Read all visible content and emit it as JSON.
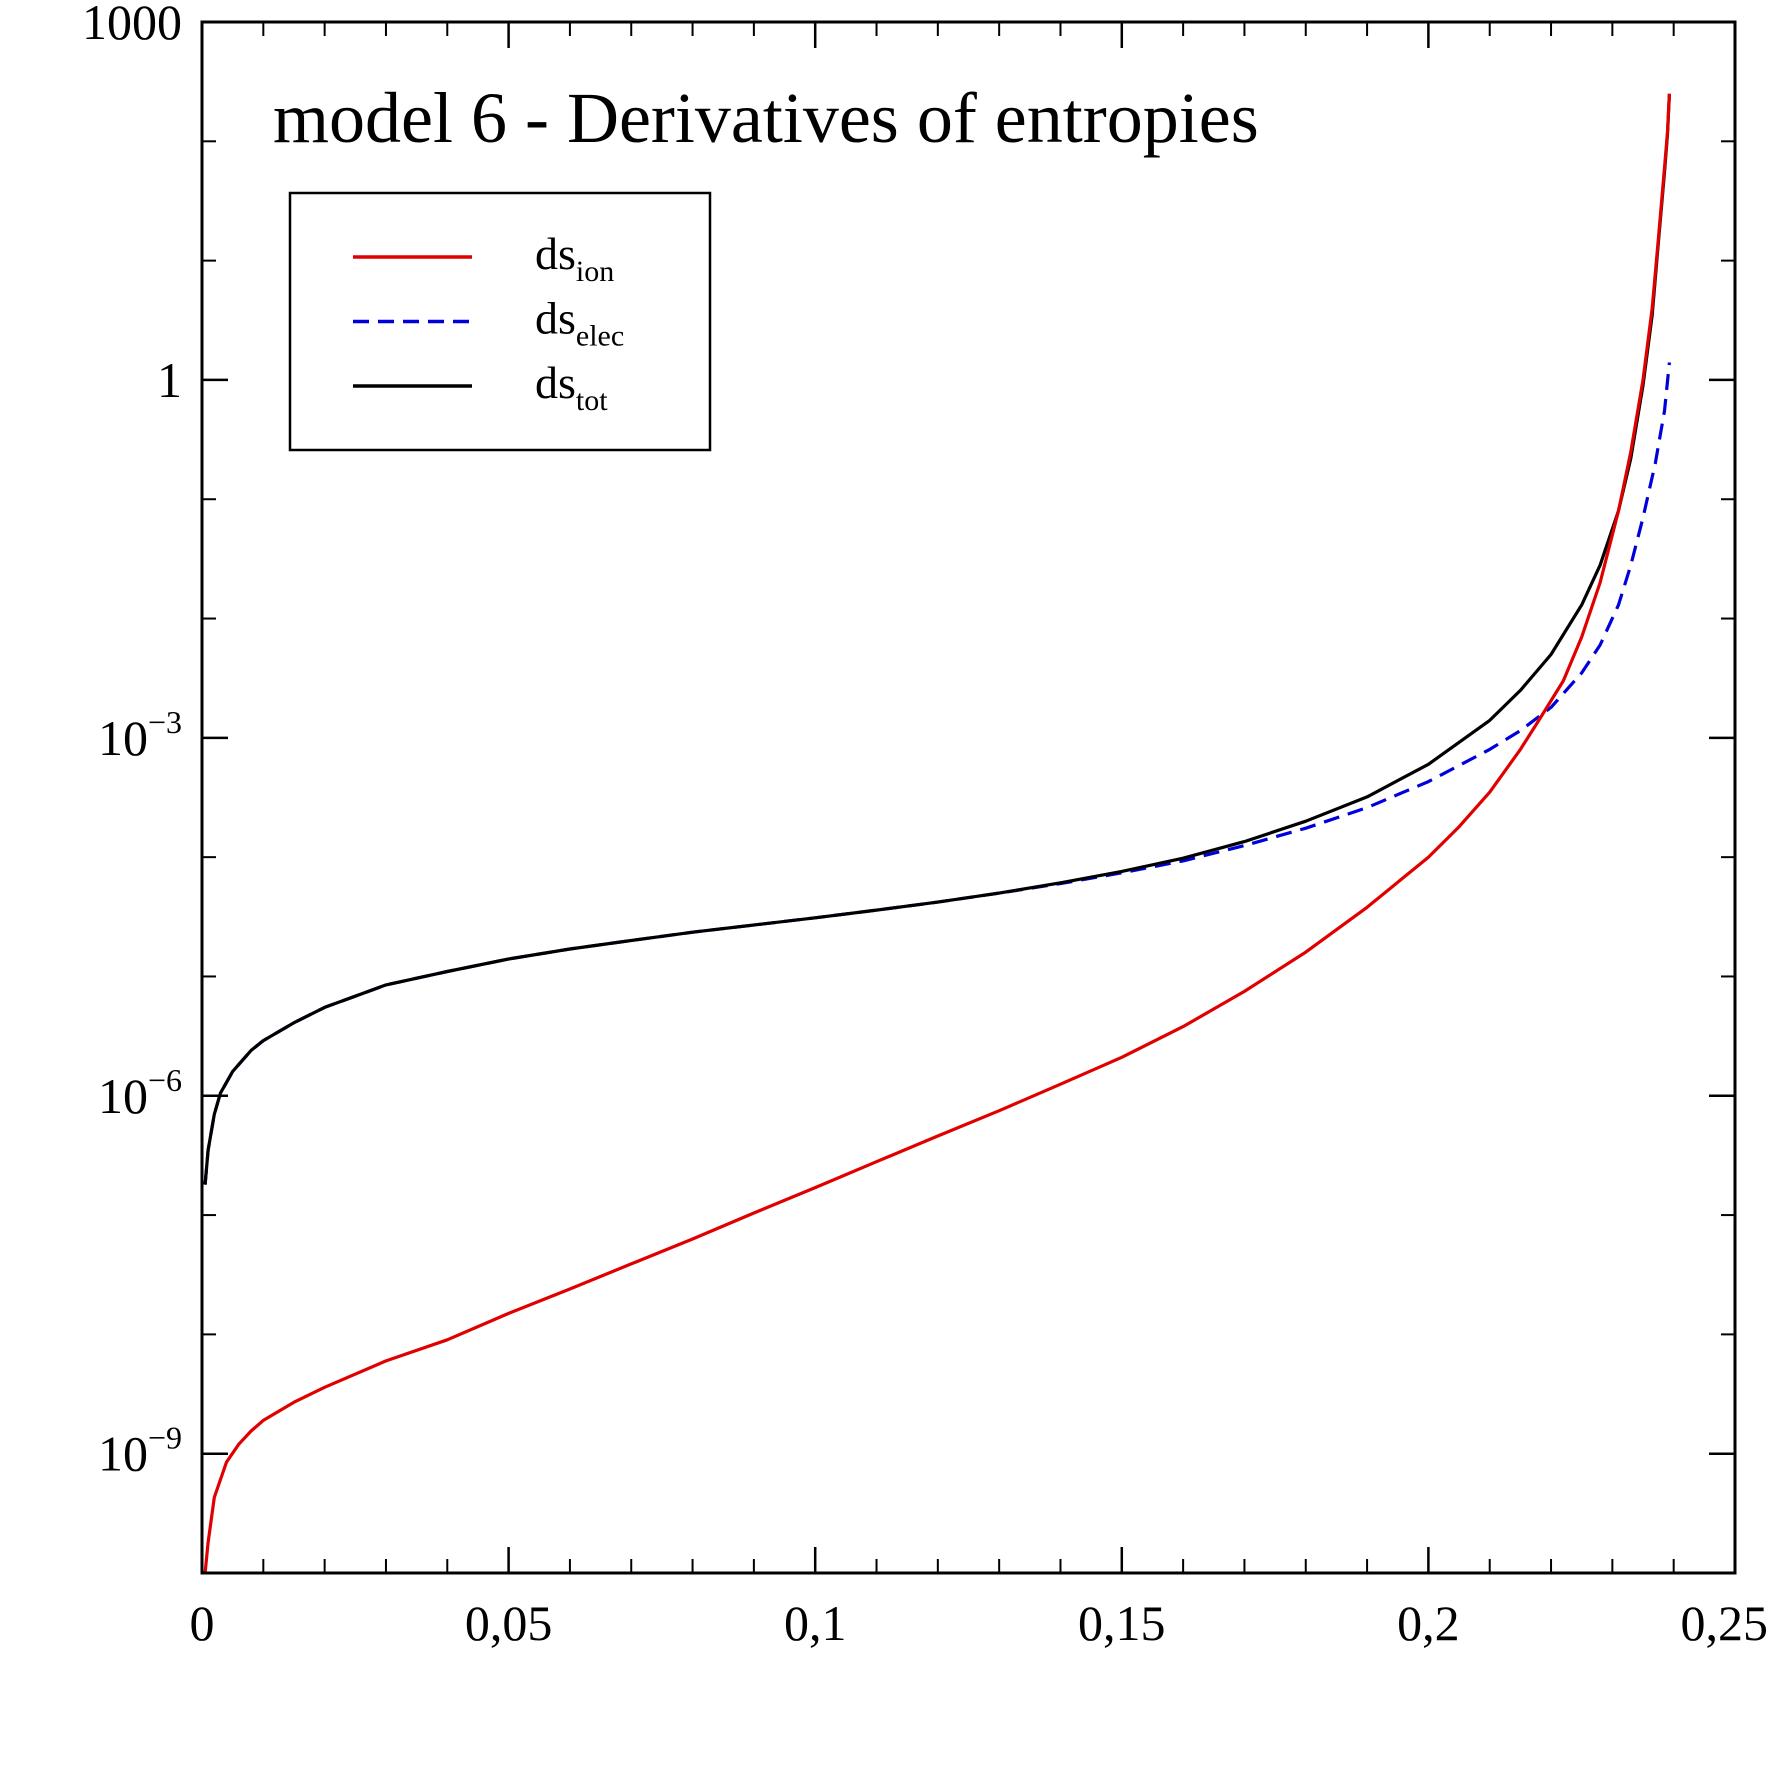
{
  "chart_data": {
    "type": "line",
    "title": "model 6 - Derivatives of entropies",
    "xlabel": "",
    "ylabel": "",
    "x_scale": "linear",
    "y_scale": "log",
    "xlim": [
      0,
      0.25
    ],
    "ylim": [
      1e-10,
      1000
    ],
    "grid": false,
    "legend_position": "top-left",
    "x_ticks": [
      {
        "value": 0,
        "label": "0"
      },
      {
        "value": 0.05,
        "label": "0,05"
      },
      {
        "value": 0.1,
        "label": "0,1"
      },
      {
        "value": 0.15,
        "label": "0,15"
      },
      {
        "value": 0.2,
        "label": "0,2"
      },
      {
        "value": 0.25,
        "label": "0,25"
      }
    ],
    "y_ticks": [
      {
        "value": 1e-09,
        "base": "10",
        "exponent": "−9"
      },
      {
        "value": 1e-06,
        "base": "10",
        "exponent": "−6"
      },
      {
        "value": 0.001,
        "base": "10",
        "exponent": "−3"
      },
      {
        "value": 1,
        "base": "1",
        "exponent": ""
      },
      {
        "value": 1000,
        "base": "1000",
        "exponent": ""
      }
    ],
    "series": [
      {
        "name": "ion",
        "legend_main": "ds",
        "legend_sub": "ion",
        "color": "#e00000",
        "dash": "solid",
        "points": [
          [
            0.0005,
            1e-10
          ],
          [
            0.001,
            1.8e-10
          ],
          [
            0.002,
            4.3e-10
          ],
          [
            0.004,
            8.5e-10
          ],
          [
            0.006,
            1.2e-09
          ],
          [
            0.008,
            1.55e-09
          ],
          [
            0.01,
            1.9e-09
          ],
          [
            0.015,
            2.7e-09
          ],
          [
            0.02,
            3.6e-09
          ],
          [
            0.03,
            6e-09
          ],
          [
            0.04,
            9e-09
          ],
          [
            0.05,
            1.5e-08
          ],
          [
            0.06,
            2.4e-08
          ],
          [
            0.07,
            3.9e-08
          ],
          [
            0.08,
            6.3e-08
          ],
          [
            0.09,
            1.04e-07
          ],
          [
            0.1,
            1.7e-07
          ],
          [
            0.11,
            2.8e-07
          ],
          [
            0.12,
            4.6e-07
          ],
          [
            0.13,
            7.5e-07
          ],
          [
            0.14,
            1.25e-06
          ],
          [
            0.15,
            2.1e-06
          ],
          [
            0.16,
            3.8e-06
          ],
          [
            0.17,
            7.5e-06
          ],
          [
            0.18,
            1.6e-05
          ],
          [
            0.19,
            3.8e-05
          ],
          [
            0.2,
            0.0001
          ],
          [
            0.205,
            0.00018
          ],
          [
            0.21,
            0.00035
          ],
          [
            0.215,
            0.0008
          ],
          [
            0.218,
            0.0014
          ],
          [
            0.222,
            0.003
          ],
          [
            0.225,
            0.007
          ],
          [
            0.228,
            0.02
          ],
          [
            0.231,
            0.08
          ],
          [
            0.233,
            0.25
          ],
          [
            0.235,
            1
          ],
          [
            0.2365,
            4
          ],
          [
            0.2375,
            15
          ],
          [
            0.2385,
            60
          ],
          [
            0.239,
            120
          ],
          [
            0.2393,
            250
          ]
        ]
      },
      {
        "name": "elec",
        "legend_main": "ds",
        "legend_sub": "elec",
        "color": "#0000dd",
        "dash": "dashed",
        "points": [
          [
            0.0005,
            1.8e-07
          ],
          [
            0.001,
            3.5e-07
          ],
          [
            0.002,
            7e-07
          ],
          [
            0.003,
            1.05e-06
          ],
          [
            0.005,
            1.6e-06
          ],
          [
            0.008,
            2.4e-06
          ],
          [
            0.01,
            2.9e-06
          ],
          [
            0.015,
            4.1e-06
          ],
          [
            0.02,
            5.5e-06
          ],
          [
            0.03,
            8.5e-06
          ],
          [
            0.04,
            1.1e-05
          ],
          [
            0.05,
            1.4e-05
          ],
          [
            0.06,
            1.7e-05
          ],
          [
            0.07,
            2e-05
          ],
          [
            0.08,
            2.35e-05
          ],
          [
            0.09,
            2.7e-05
          ],
          [
            0.1,
            3.1e-05
          ],
          [
            0.11,
            3.6e-05
          ],
          [
            0.12,
            4.2e-05
          ],
          [
            0.13,
            5e-05
          ],
          [
            0.14,
            6e-05
          ],
          [
            0.15,
            7.4e-05
          ],
          [
            0.16,
            9.3e-05
          ],
          [
            0.17,
            0.000125
          ],
          [
            0.18,
            0.000175
          ],
          [
            0.19,
            0.00026
          ],
          [
            0.2,
            0.00043
          ],
          [
            0.21,
            0.0008
          ],
          [
            0.215,
            0.00115
          ],
          [
            0.22,
            0.0018
          ],
          [
            0.225,
            0.0035
          ],
          [
            0.228,
            0.006
          ],
          [
            0.231,
            0.013
          ],
          [
            0.233,
            0.028
          ],
          [
            0.235,
            0.07
          ],
          [
            0.237,
            0.2
          ],
          [
            0.2385,
            0.55
          ],
          [
            0.2393,
            1.4
          ]
        ]
      },
      {
        "name": "tot",
        "legend_main": "ds",
        "legend_sub": "tot",
        "color": "#000000",
        "dash": "solid",
        "points": [
          [
            0.0005,
            1.8e-07
          ],
          [
            0.001,
            3.5e-07
          ],
          [
            0.002,
            7e-07
          ],
          [
            0.003,
            1.05e-06
          ],
          [
            0.005,
            1.6e-06
          ],
          [
            0.008,
            2.4e-06
          ],
          [
            0.01,
            2.9e-06
          ],
          [
            0.015,
            4.1e-06
          ],
          [
            0.02,
            5.5e-06
          ],
          [
            0.03,
            8.5e-06
          ],
          [
            0.04,
            1.1e-05
          ],
          [
            0.05,
            1.4e-05
          ],
          [
            0.06,
            1.7e-05
          ],
          [
            0.07,
            2e-05
          ],
          [
            0.08,
            2.35e-05
          ],
          [
            0.09,
            2.7e-05
          ],
          [
            0.1,
            3.1e-05
          ],
          [
            0.11,
            3.6e-05
          ],
          [
            0.12,
            4.2e-05
          ],
          [
            0.13,
            5e-05
          ],
          [
            0.14,
            6.1e-05
          ],
          [
            0.15,
            7.6e-05
          ],
          [
            0.16,
            9.8e-05
          ],
          [
            0.17,
            0.000135
          ],
          [
            0.18,
            0.0002
          ],
          [
            0.19,
            0.00032
          ],
          [
            0.2,
            0.0006
          ],
          [
            0.21,
            0.0014
          ],
          [
            0.215,
            0.0025
          ],
          [
            0.22,
            0.005
          ],
          [
            0.225,
            0.013
          ],
          [
            0.228,
            0.028
          ],
          [
            0.231,
            0.08
          ],
          [
            0.233,
            0.22
          ],
          [
            0.235,
            0.9
          ],
          [
            0.2365,
            3.5
          ],
          [
            0.2375,
            14
          ],
          [
            0.2385,
            55
          ],
          [
            0.239,
            115
          ],
          [
            0.2393,
            250
          ]
        ]
      }
    ]
  }
}
